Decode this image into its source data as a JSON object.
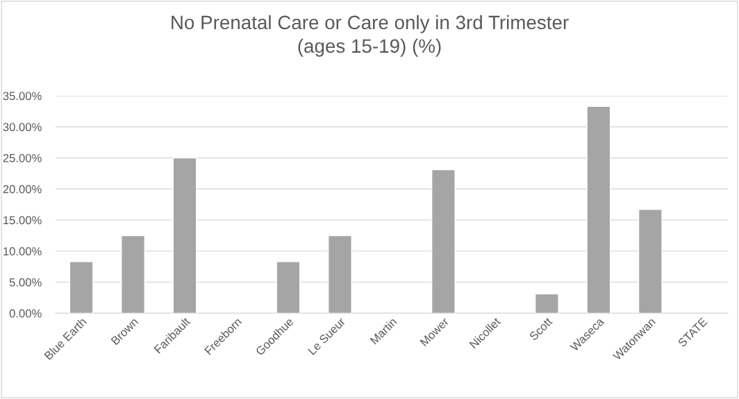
{
  "chart_data": {
    "type": "bar",
    "title": "No Prenatal Care or Care only in 3rd Trimester\n(ages 15-19) (%)",
    "categories": [
      "Blue Earth",
      "Brown",
      "Faribault",
      "Freeborn",
      "Goodhue",
      "Le Sueur",
      "Martin",
      "Mower",
      "Nicollet",
      "Scott",
      "Waseca",
      "Watonwan",
      "STATE"
    ],
    "values": [
      8.3,
      12.5,
      25.0,
      null,
      8.3,
      12.5,
      null,
      23.1,
      null,
      3.1,
      33.3,
      16.7,
      null
    ],
    "color": "#a5a5a5",
    "ylim": [
      0,
      35
    ],
    "yticks": [
      {
        "value": 0,
        "label": "0.00%"
      },
      {
        "value": 5,
        "label": "5.00%"
      },
      {
        "value": 10,
        "label": "10.00%"
      },
      {
        "value": 15,
        "label": "15.00%"
      },
      {
        "value": 20,
        "label": "20.00%"
      },
      {
        "value": 25,
        "label": "25.00%"
      },
      {
        "value": 30,
        "label": "30.00%"
      },
      {
        "value": 35,
        "label": "35.00%"
      }
    ],
    "grid": "y"
  }
}
